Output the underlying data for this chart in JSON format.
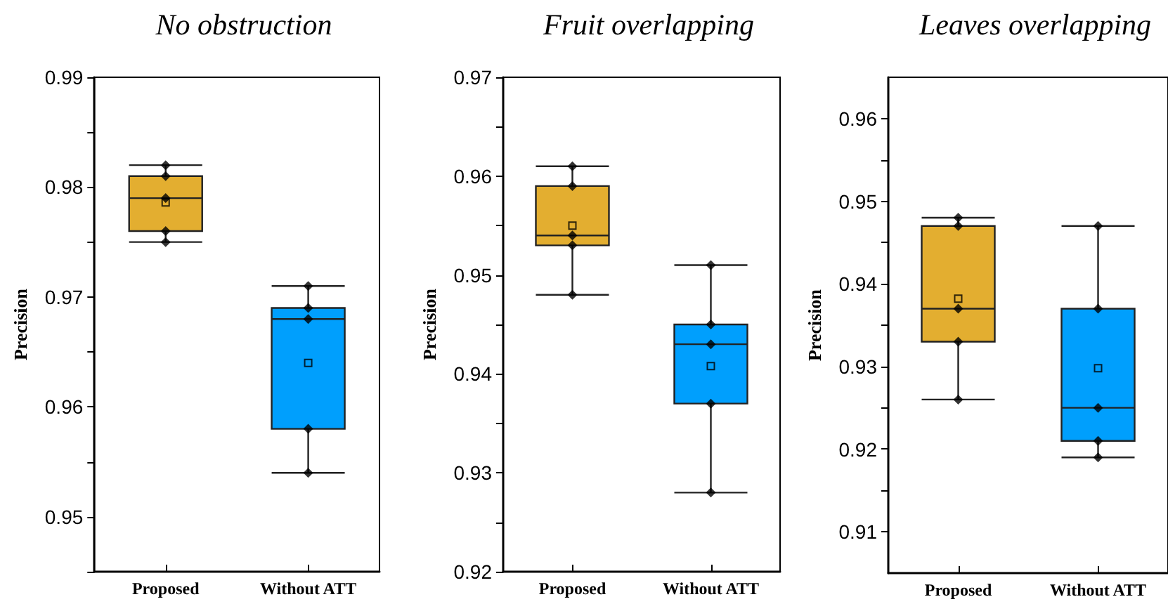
{
  "chart_data": [
    {
      "type": "box",
      "title": "No obstruction",
      "ylabel": "Precision",
      "categories": [
        "Proposed",
        "Without ATT"
      ],
      "colors": [
        "#e3ae30",
        "#009ffd"
      ],
      "boxes": [
        {
          "low": 0.975,
          "q1": 0.976,
          "median": 0.979,
          "q3": 0.981,
          "high": 0.982,
          "mean": 0.9786
        },
        {
          "low": 0.954,
          "q1": 0.958,
          "median": 0.968,
          "q3": 0.969,
          "high": 0.971,
          "mean": 0.964
        }
      ],
      "series": [
        {
          "type": "scatter",
          "marker": "diamond",
          "color": "#000000",
          "x": [
            "Proposed",
            "Proposed",
            "Proposed",
            "Proposed",
            "Proposed",
            "Without ATT",
            "Without ATT",
            "Without ATT",
            "Without ATT",
            "Without ATT"
          ],
          "values": [
            0.982,
            0.981,
            0.979,
            0.976,
            0.975,
            0.971,
            0.969,
            0.968,
            0.958,
            0.954
          ]
        }
      ],
      "ylim": [
        0.945,
        0.99
      ],
      "yticks": [
        {
          "value": 0.945,
          "label": null
        },
        0.95,
        {
          "value": 0.955,
          "label": null
        },
        0.96,
        {
          "value": 0.965,
          "label": null
        },
        0.97,
        {
          "value": 0.975,
          "label": null
        },
        0.98,
        {
          "value": 0.985,
          "label": null
        },
        0.99
      ]
    },
    {
      "type": "box",
      "title": "Fruit overlapping",
      "ylabel": "Precision",
      "categories": [
        "Proposed",
        "Without ATT"
      ],
      "colors": [
        "#e3ae30",
        "#009ffd"
      ],
      "boxes": [
        {
          "low": 0.948,
          "q1": 0.953,
          "median": 0.954,
          "q3": 0.959,
          "high": 0.961,
          "mean": 0.955
        },
        {
          "low": 0.928,
          "q1": 0.937,
          "median": 0.943,
          "q3": 0.945,
          "high": 0.951,
          "mean": 0.9408
        }
      ],
      "series": [
        {
          "type": "scatter",
          "marker": "diamond",
          "color": "#000000",
          "x": [
            "Proposed",
            "Proposed",
            "Proposed",
            "Proposed",
            "Proposed",
            "Without ATT",
            "Without ATT",
            "Without ATT",
            "Without ATT",
            "Without ATT"
          ],
          "values": [
            0.961,
            0.959,
            0.954,
            0.953,
            0.948,
            0.951,
            0.945,
            0.943,
            0.937,
            0.928
          ]
        }
      ],
      "ylim": [
        0.92,
        0.97
      ],
      "yticks": [
        0.92,
        {
          "value": 0.925,
          "label": null
        },
        0.93,
        {
          "value": 0.935,
          "label": null
        },
        0.94,
        {
          "value": 0.945,
          "label": null
        },
        0.95,
        {
          "value": 0.955,
          "label": null
        },
        0.96,
        {
          "value": 0.965,
          "label": null
        },
        0.97
      ]
    },
    {
      "type": "box",
      "title": "Leaves overlapping",
      "ylabel": "Precision",
      "categories": [
        "Proposed",
        "Without ATT"
      ],
      "colors": [
        "#e3ae30",
        "#009ffd"
      ],
      "boxes": [
        {
          "low": 0.926,
          "q1": 0.933,
          "median": 0.937,
          "q3": 0.947,
          "high": 0.948,
          "mean": 0.9382
        },
        {
          "low": 0.919,
          "q1": 0.921,
          "median": 0.925,
          "q3": 0.937,
          "high": 0.947,
          "mean": 0.9298
        }
      ],
      "series": [
        {
          "type": "scatter",
          "marker": "diamond",
          "color": "#000000",
          "x": [
            "Proposed",
            "Proposed",
            "Proposed",
            "Proposed",
            "Proposed",
            "Without ATT",
            "Without ATT",
            "Without ATT",
            "Without ATT",
            "Without ATT"
          ],
          "values": [
            0.948,
            0.947,
            0.937,
            0.933,
            0.926,
            0.947,
            0.937,
            0.925,
            0.921,
            0.919
          ]
        }
      ],
      "ylim": [
        0.905,
        0.965
      ],
      "yticks": [
        0.91,
        {
          "value": 0.915,
          "label": null
        },
        0.92,
        {
          "value": 0.925,
          "label": null
        },
        0.93,
        {
          "value": 0.935,
          "label": null
        },
        0.94,
        {
          "value": 0.945,
          "label": null
        },
        0.95,
        {
          "value": 0.955,
          "label": null
        },
        0.96
      ]
    }
  ]
}
